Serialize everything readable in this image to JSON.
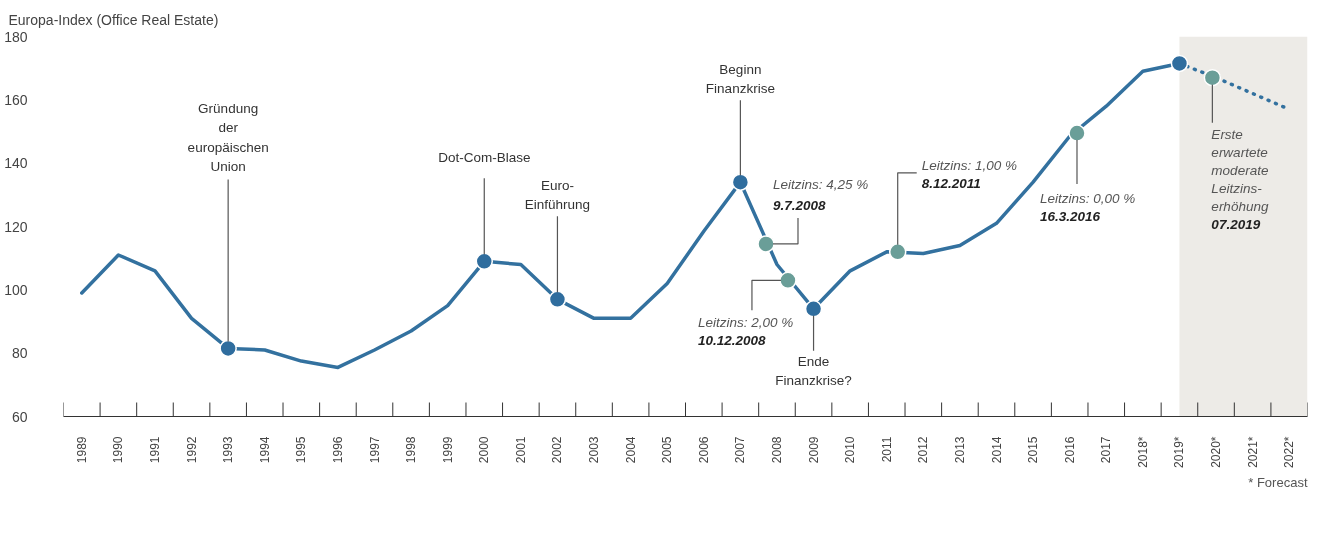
{
  "chart_data": {
    "type": "line",
    "ylabel": "Europa-Index (Office Real Estate)",
    "xlim": [
      1988.5,
      2022.5
    ],
    "xticks": [
      {
        "value": 1988.5,
        "label": null
      },
      {
        "value": 1989,
        "label": "1989"
      },
      {
        "value": 1989.5,
        "label": null
      },
      {
        "value": 1990,
        "label": "1990"
      },
      {
        "value": 1990.5,
        "label": null
      },
      {
        "value": 1991,
        "label": "1991"
      },
      {
        "value": 1991.5,
        "label": null
      },
      {
        "value": 1992,
        "label": "1992"
      },
      {
        "value": 1992.5,
        "label": null
      },
      {
        "value": 1993,
        "label": "1993"
      },
      {
        "value": 1993.5,
        "label": null
      },
      {
        "value": 1994,
        "label": "1994"
      },
      {
        "value": 1994.5,
        "label": null
      },
      {
        "value": 1995,
        "label": "1995"
      },
      {
        "value": 1995.5,
        "label": null
      },
      {
        "value": 1996,
        "label": "1996"
      },
      {
        "value": 1996.5,
        "label": null
      },
      {
        "value": 1997,
        "label": "1997"
      },
      {
        "value": 1997.5,
        "label": null
      },
      {
        "value": 1998,
        "label": "1998"
      },
      {
        "value": 1998.5,
        "label": null
      },
      {
        "value": 1999,
        "label": "1999"
      },
      {
        "value": 1999.5,
        "label": null
      },
      {
        "value": 2000,
        "label": "2000"
      },
      {
        "value": 2000.5,
        "label": null
      },
      {
        "value": 2001,
        "label": "2001"
      },
      {
        "value": 2001.5,
        "label": null
      },
      {
        "value": 2002,
        "label": "2002"
      },
      {
        "value": 2002.5,
        "label": null
      },
      {
        "value": 2003,
        "label": "2003"
      },
      {
        "value": 2003.5,
        "label": null
      },
      {
        "value": 2004,
        "label": "2004"
      },
      {
        "value": 2004.5,
        "label": null
      },
      {
        "value": 2005,
        "label": "2005"
      },
      {
        "value": 2005.5,
        "label": null
      },
      {
        "value": 2006,
        "label": "2006"
      },
      {
        "value": 2006.5,
        "label": null
      },
      {
        "value": 2007,
        "label": "2007"
      },
      {
        "value": 2007.5,
        "label": null
      },
      {
        "value": 2008,
        "label": "2008"
      },
      {
        "value": 2008.5,
        "label": null
      },
      {
        "value": 2009,
        "label": "2009"
      },
      {
        "value": 2009.5,
        "label": null
      },
      {
        "value": 2010,
        "label": "2010"
      },
      {
        "value": 2010.5,
        "label": null
      },
      {
        "value": 2011,
        "label": "2011"
      },
      {
        "value": 2011.5,
        "label": null
      },
      {
        "value": 2012,
        "label": "2012"
      },
      {
        "value": 2012.5,
        "label": null
      },
      {
        "value": 2013,
        "label": "2013"
      },
      {
        "value": 2013.5,
        "label": null
      },
      {
        "value": 2014,
        "label": "2014"
      },
      {
        "value": 2014.5,
        "label": null
      },
      {
        "value": 2015,
        "label": "2015"
      },
      {
        "value": 2015.5,
        "label": null
      },
      {
        "value": 2016,
        "label": "2016"
      },
      {
        "value": 2016.5,
        "label": null
      },
      {
        "value": 2017,
        "label": "2017"
      },
      {
        "value": 2017.5,
        "label": null
      },
      {
        "value": 2018,
        "label": "2018*"
      },
      {
        "value": 2018.5,
        "label": null
      },
      {
        "value": 2019,
        "label": "2019*"
      },
      {
        "value": 2019.5,
        "label": null
      },
      {
        "value": 2020,
        "label": "2020*"
      },
      {
        "value": 2020.5,
        "label": null
      },
      {
        "value": 2021,
        "label": "2021*"
      },
      {
        "value": 2021.5,
        "label": null
      },
      {
        "value": 2022,
        "label": "2022*"
      },
      {
        "value": 2022.5,
        "label": null
      }
    ],
    "ylim": [
      60,
      180
    ],
    "yticks": [
      60,
      80,
      100,
      120,
      140,
      160,
      180
    ],
    "grid": false,
    "bands": [
      {
        "axis": "x",
        "from": 2019,
        "to": 2022.5,
        "color": "#edebe7"
      }
    ],
    "series": [
      {
        "type": "line",
        "color": "#33719f",
        "line_style": "solid",
        "x": [
          1989,
          1990,
          1991,
          1992,
          1993,
          1994,
          1995,
          1996,
          1997,
          1998,
          1999,
          2000,
          2001,
          2002,
          2003,
          2004,
          2005,
          2006,
          2007,
          2008,
          2009,
          2010,
          2011,
          2012,
          2013,
          2014,
          2015,
          2016,
          2017,
          2018,
          2019
        ],
        "values": [
          99,
          111,
          106,
          91,
          81.5,
          81,
          77.5,
          75.5,
          81,
          87,
          95,
          109,
          108,
          97,
          91,
          91,
          102,
          118.5,
          134,
          108,
          94,
          106,
          112,
          111.5,
          114,
          121,
          134,
          148.5,
          158,
          169,
          171.5
        ]
      },
      {
        "type": "line",
        "color": "#33719f",
        "line_style": "dotted",
        "x": [
          2019,
          2020,
          2021,
          2022
        ],
        "values": [
          171.5,
          167,
          162,
          157
        ]
      },
      {
        "type": "scatter",
        "color": "#2f6d9e",
        "marker": "circle",
        "x": [
          1993,
          2000,
          2002,
          2007,
          2009,
          2019
        ],
        "values": [
          81.5,
          109,
          97,
          134,
          94,
          171.5
        ]
      },
      {
        "type": "scatter",
        "color": "#6a9e98",
        "marker": "circle",
        "x": [
          2007.7,
          2008.3,
          2011.3,
          2016.2,
          2019.9
        ],
        "values": [
          114.5,
          103,
          112,
          149.5,
          167
        ]
      }
    ],
    "annotations": [
      {
        "text": "Gründung\nder\neuropäischen\nUnion",
        "x": 1993,
        "y": 81.5
      },
      {
        "text": "Dot-Com-Blase",
        "x": 2000,
        "y": 109
      },
      {
        "text": "Euro-\nEinführung",
        "x": 2002,
        "y": 97
      },
      {
        "text": "Beginn\nFinanzkrise",
        "x": 2007,
        "y": 134
      },
      {
        "text": "Leitzins: 4,25 %\n9.7.2008",
        "x": 2007.7,
        "y": 114.5
      },
      {
        "text": "Leitzins: 2,00 %\n10.12.2008",
        "x": 2008.3,
        "y": 103
      },
      {
        "text": "Ende\nFinanzkrise?",
        "x": 2009,
        "y": 94
      },
      {
        "text": "Leitzins: 1,00 %\n8.12.2011",
        "x": 2011.3,
        "y": 112
      },
      {
        "text": "Leitzins: 0,00 %\n16.3.2016",
        "x": 2016.2,
        "y": 149.5
      },
      {
        "text": "Erste\nerwartete\nmoderate\nLeitzins-\nerhöhung\n07.2019",
        "x": 2019.9,
        "y": 167
      },
      "* Forecast"
    ]
  }
}
